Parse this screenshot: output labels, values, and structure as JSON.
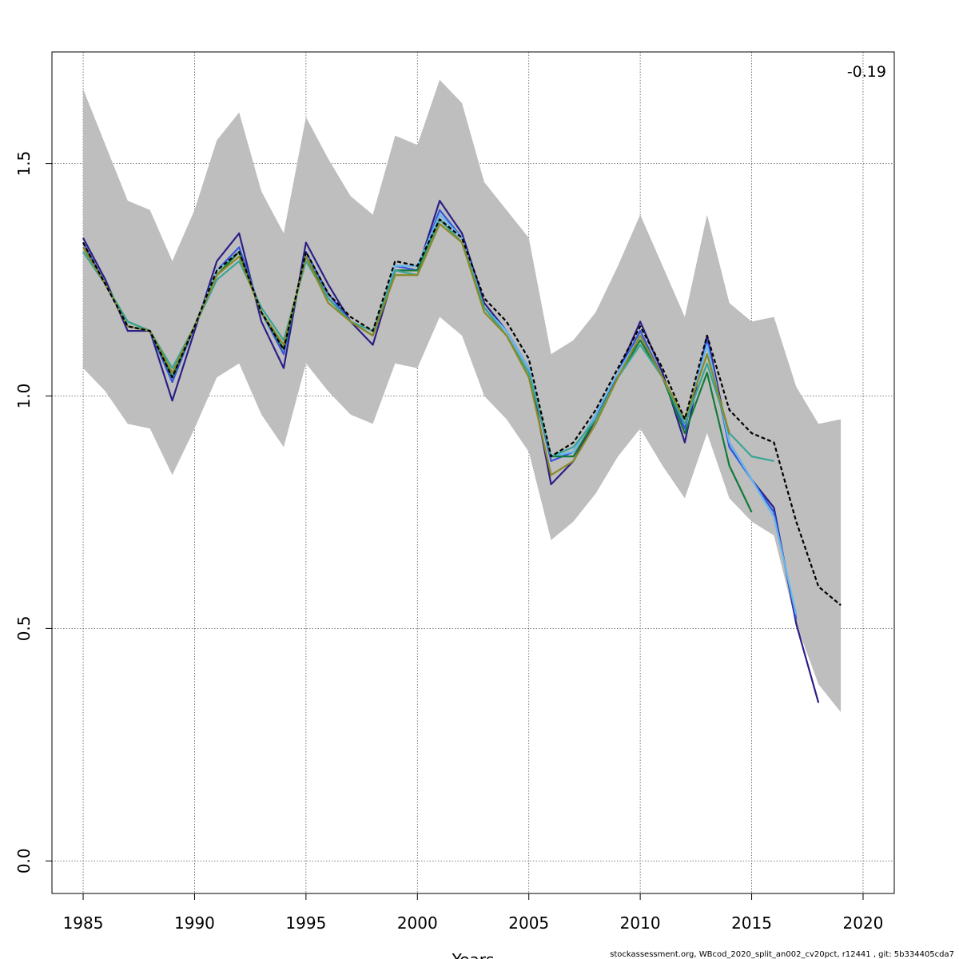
{
  "chart_data": {
    "type": "line",
    "title": "",
    "xlabel": "Years",
    "ylabel": "",
    "xlim": [
      1983.6,
      2021.4
    ],
    "ylim": [
      -0.07,
      1.74
    ],
    "x_ticks": [
      1985,
      1990,
      1995,
      2000,
      2005,
      2010,
      2015,
      2020
    ],
    "y_ticks": [
      0.0,
      0.5,
      1.0,
      1.5
    ],
    "x_tick_labels": [
      "1985",
      "1990",
      "1995",
      "2000",
      "2005",
      "2010",
      "2015",
      "2020"
    ],
    "y_tick_labels": [
      "0.0",
      "0.5",
      "1.0",
      "1.5"
    ],
    "grid": true,
    "annotation": "-0.19",
    "footer": "stockassessment.org, WBcod_2020_split_an002_cv20pct, r12441 , git: 5b334405cda7",
    "band": {
      "color": "#bebebe",
      "x": [
        1985,
        1986,
        1987,
        1988,
        1989,
        1990,
        1991,
        1992,
        1993,
        1994,
        1995,
        1996,
        1997,
        1998,
        1999,
        2000,
        2001,
        2002,
        2003,
        2004,
        2005,
        2006,
        2007,
        2008,
        2009,
        2010,
        2011,
        2012,
        2013,
        2014,
        2015,
        2016,
        2017,
        2018,
        2019
      ],
      "upper": [
        1.66,
        1.54,
        1.42,
        1.4,
        1.29,
        1.4,
        1.55,
        1.61,
        1.44,
        1.35,
        1.6,
        1.51,
        1.43,
        1.39,
        1.56,
        1.54,
        1.68,
        1.63,
        1.46,
        1.4,
        1.34,
        1.09,
        1.12,
        1.18,
        1.28,
        1.39,
        1.28,
        1.17,
        1.39,
        1.2,
        1.16,
        1.17,
        1.02,
        0.94,
        0.95
      ],
      "lower": [
        1.06,
        1.01,
        0.94,
        0.93,
        0.83,
        0.93,
        1.04,
        1.07,
        0.96,
        0.89,
        1.07,
        1.01,
        0.96,
        0.94,
        1.07,
        1.06,
        1.17,
        1.13,
        1.0,
        0.95,
        0.88,
        0.69,
        0.73,
        0.79,
        0.87,
        0.93,
        0.85,
        0.78,
        0.92,
        0.78,
        0.73,
        0.7,
        0.51,
        0.38,
        0.32
      ]
    },
    "series": [
      {
        "color": "#2a1f86",
        "dashed": false,
        "x": [
          1985,
          1986,
          1987,
          1988,
          1989,
          1990,
          1991,
          1992,
          1993,
          1994,
          1995,
          1996,
          1997,
          1998,
          1999,
          2000,
          2001,
          2002,
          2003,
          2004,
          2005,
          2006,
          2007,
          2008,
          2009,
          2010,
          2011,
          2012,
          2013,
          2014,
          2015,
          2016,
          2017,
          2018
        ],
        "values": [
          1.34,
          1.25,
          1.14,
          1.14,
          0.99,
          1.14,
          1.29,
          1.35,
          1.16,
          1.06,
          1.33,
          1.24,
          1.16,
          1.11,
          1.27,
          1.27,
          1.42,
          1.35,
          1.2,
          1.14,
          1.06,
          0.81,
          0.86,
          0.95,
          1.05,
          1.16,
          1.05,
          0.9,
          1.13,
          0.9,
          0.82,
          0.76,
          0.51,
          0.34
        ]
      },
      {
        "color": "#3355dd",
        "dashed": false,
        "x": [
          1985,
          1986,
          1987,
          1988,
          1989,
          1990,
          1991,
          1992,
          1993,
          1994,
          1995,
          1996,
          1997,
          1998,
          1999,
          2000,
          2001,
          2002,
          2003,
          2004,
          2005,
          2006,
          2007,
          2008,
          2009,
          2010,
          2011,
          2012,
          2013,
          2014,
          2015,
          2016,
          2017
        ],
        "values": [
          1.33,
          1.24,
          1.15,
          1.14,
          1.03,
          1.15,
          1.27,
          1.32,
          1.18,
          1.09,
          1.31,
          1.22,
          1.16,
          1.13,
          1.28,
          1.27,
          1.4,
          1.34,
          1.19,
          1.14,
          1.06,
          0.86,
          0.88,
          0.96,
          1.05,
          1.14,
          1.04,
          0.93,
          1.12,
          0.89,
          0.82,
          0.75,
          0.52
        ]
      },
      {
        "color": "#66b8ee",
        "dashed": false,
        "x": [
          1985,
          1986,
          1987,
          1988,
          1989,
          1990,
          1991,
          1992,
          1993,
          1994,
          1995,
          1996,
          1997,
          1998,
          1999,
          2000,
          2001,
          2002,
          2003,
          2004,
          2005,
          2006,
          2007,
          2008,
          2009,
          2010,
          2011,
          2012,
          2013,
          2014,
          2015,
          2016,
          2017
        ],
        "values": [
          1.32,
          1.24,
          1.15,
          1.14,
          1.04,
          1.15,
          1.27,
          1.31,
          1.18,
          1.1,
          1.3,
          1.21,
          1.16,
          1.13,
          1.28,
          1.28,
          1.39,
          1.34,
          1.19,
          1.14,
          1.06,
          0.87,
          0.88,
          0.96,
          1.05,
          1.13,
          1.04,
          0.94,
          1.11,
          0.9,
          0.82,
          0.74,
          0.53
        ]
      },
      {
        "color": "#127a3a",
        "dashed": false,
        "x": [
          1985,
          1986,
          1987,
          1988,
          1989,
          1990,
          1991,
          1992,
          1993,
          1994,
          1995,
          1996,
          1997,
          1998,
          1999,
          2000,
          2001,
          2002,
          2003,
          2004,
          2005,
          2006,
          2007,
          2008,
          2009,
          2010,
          2011,
          2012,
          2013,
          2014,
          2015
        ],
        "values": [
          1.32,
          1.24,
          1.16,
          1.14,
          1.04,
          1.15,
          1.26,
          1.31,
          1.18,
          1.1,
          1.3,
          1.21,
          1.16,
          1.13,
          1.27,
          1.27,
          1.38,
          1.33,
          1.19,
          1.13,
          1.05,
          0.87,
          0.87,
          0.95,
          1.04,
          1.12,
          1.04,
          0.92,
          1.05,
          0.85,
          0.75
        ]
      },
      {
        "color": "#3aa594",
        "dashed": false,
        "x": [
          1985,
          1986,
          1987,
          1988,
          1989,
          1990,
          1991,
          1992,
          1993,
          1994,
          1995,
          1996,
          1997,
          1998,
          1999,
          2000,
          2001,
          2002,
          2003,
          2004,
          2005,
          2006,
          2007,
          2008,
          2009,
          2010,
          2011,
          2012,
          2013,
          2014,
          2015,
          2016
        ],
        "values": [
          1.31,
          1.24,
          1.16,
          1.14,
          1.06,
          1.15,
          1.25,
          1.29,
          1.19,
          1.12,
          1.29,
          1.21,
          1.16,
          1.14,
          1.27,
          1.26,
          1.38,
          1.33,
          1.19,
          1.13,
          1.05,
          0.87,
          0.89,
          0.95,
          1.04,
          1.11,
          1.04,
          0.94,
          1.07,
          0.92,
          0.87,
          0.86
        ]
      },
      {
        "color": "#8a8a26",
        "dashed": false,
        "x": [
          1985,
          1986,
          1987,
          1988,
          1989,
          1990,
          1991,
          1992,
          1993,
          1994,
          1995,
          1996,
          1997,
          1998,
          1999,
          2000,
          2001,
          2002,
          2003,
          2004,
          2005,
          2006,
          2007,
          2008,
          2009,
          2010,
          2011,
          2012,
          2013,
          2014
        ],
        "values": [
          1.32,
          1.24,
          1.15,
          1.14,
          1.05,
          1.15,
          1.26,
          1.3,
          1.18,
          1.11,
          1.3,
          1.2,
          1.16,
          1.13,
          1.26,
          1.26,
          1.37,
          1.33,
          1.18,
          1.13,
          1.04,
          0.83,
          0.86,
          0.94,
          1.04,
          1.13,
          1.04,
          0.95,
          1.09,
          0.92
        ]
      },
      {
        "color": "#000000",
        "dashed": true,
        "x": [
          1985,
          1986,
          1987,
          1988,
          1989,
          1990,
          1991,
          1992,
          1993,
          1994,
          1995,
          1996,
          1997,
          1998,
          1999,
          2000,
          2001,
          2002,
          2003,
          2004,
          2005,
          2006,
          2007,
          2008,
          2009,
          2010,
          2011,
          2012,
          2013,
          2014,
          2015,
          2016,
          2017,
          2018,
          2019
        ],
        "values": [
          1.33,
          1.24,
          1.15,
          1.14,
          1.04,
          1.15,
          1.27,
          1.31,
          1.18,
          1.1,
          1.31,
          1.22,
          1.17,
          1.14,
          1.29,
          1.28,
          1.38,
          1.34,
          1.21,
          1.16,
          1.08,
          0.87,
          0.9,
          0.97,
          1.06,
          1.15,
          1.06,
          0.95,
          1.13,
          0.97,
          0.92,
          0.9,
          0.73,
          0.59,
          0.55
        ]
      }
    ]
  }
}
